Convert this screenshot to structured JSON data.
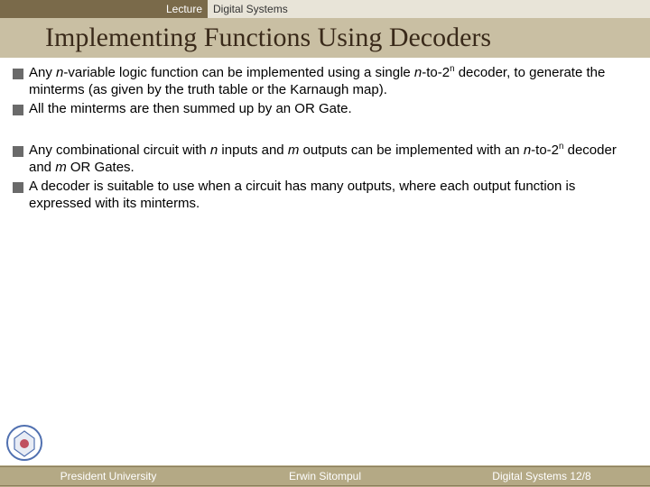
{
  "header": {
    "left": "Lecture",
    "right": "Digital Systems"
  },
  "title": "Implementing Functions Using Decoders",
  "groups": [
    {
      "items": [
        {
          "html": "Any <span class=\"italic\">n</span>-variable logic function can be implemented using a single <span class=\"italic\">n</span>-to-2<sup>n</sup> decoder, to generate the minterms (as given by the truth table or the Karnaugh map)."
        },
        {
          "html": "All the minterms are then summed up by an OR Gate."
        }
      ]
    },
    {
      "items": [
        {
          "html": "Any combinational circuit with <span class=\"italic\">n</span> inputs and <span class=\"italic\">m</span> outputs can be implemented with an <span class=\"italic\">n</span>-to-2<sup>n</sup> decoder and <span class=\"italic\">m</span> OR Gates."
        },
        {
          "html": "A decoder is suitable to use when a circuit has many outputs, where each output function is expressed with its minterms."
        }
      ]
    }
  ],
  "footer": {
    "left": "President University",
    "center": "Erwin Sitompul",
    "right": "Digital Systems 12/8"
  },
  "colors": {
    "header_bar": "#7a6a4a",
    "header_right_bg": "#e8e4d8",
    "title_bg": "#c9bfa3",
    "title_text": "#3a2a1a",
    "bullet": "#6a6a6a",
    "footer_bg": "#b4a985",
    "footer_text": "#ffffff"
  }
}
